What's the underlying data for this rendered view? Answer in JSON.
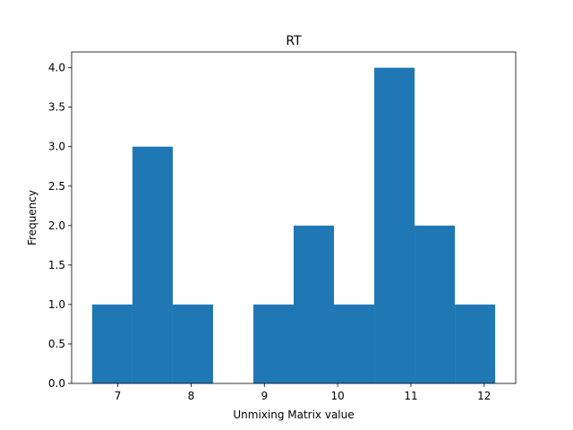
{
  "chart_data": {
    "type": "histogram",
    "title": "RT",
    "xlabel": "Unmixing Matrix value",
    "ylabel": "Frequency",
    "bin_edges": [
      6.65,
      7.2,
      7.75,
      8.3,
      8.85,
      9.4,
      9.95,
      10.5,
      11.05,
      11.6,
      12.15
    ],
    "counts": [
      1,
      3,
      1,
      0,
      1,
      2,
      1,
      4,
      2,
      1
    ],
    "xlim": [
      6.37,
      12.43
    ],
    "ylim": [
      0,
      4.2
    ],
    "xticks": [
      7,
      8,
      9,
      10,
      11,
      12
    ],
    "yticks": [
      0.0,
      0.5,
      1.0,
      1.5,
      2.0,
      2.5,
      3.0,
      3.5,
      4.0
    ],
    "grid": false,
    "bar_color": "#1f77b4"
  }
}
